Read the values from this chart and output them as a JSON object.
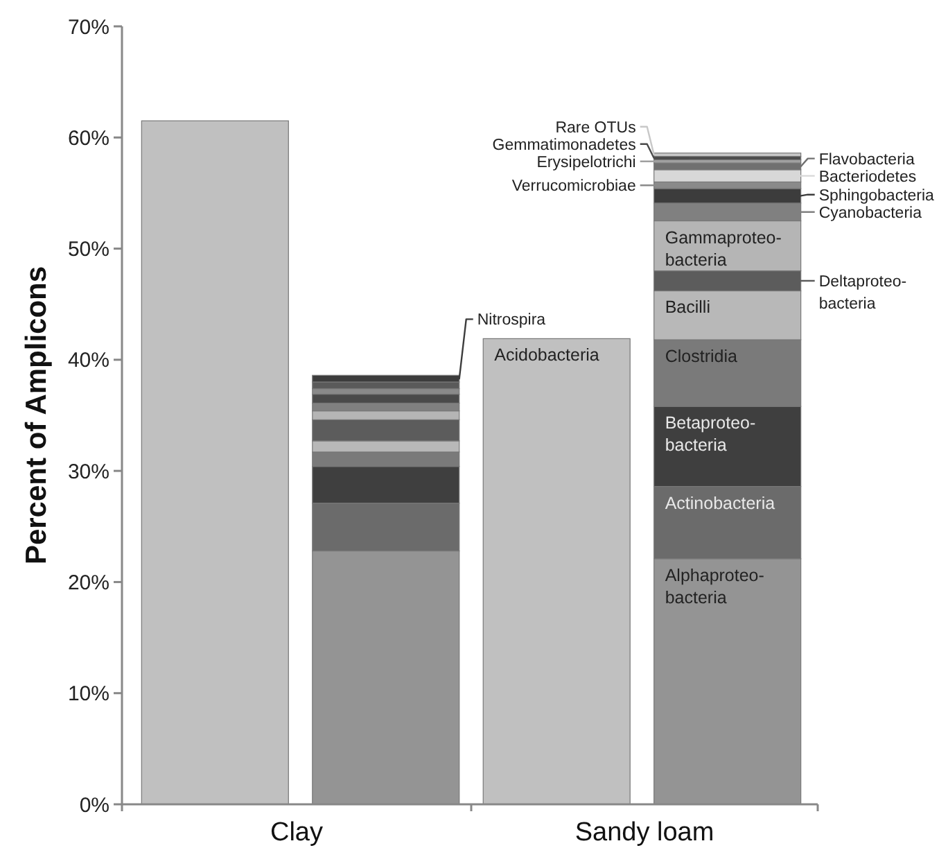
{
  "chart_data": {
    "type": "bar",
    "stacked": true,
    "ylabel": "Percent of Amplicons",
    "categories": [
      null,
      null,
      null,
      null
    ],
    "annotations": [
      "Clay",
      "Sandy loam"
    ],
    "ylim": [
      0,
      70
    ],
    "yticks": [
      {
        "value": 0,
        "label": "0%"
      },
      {
        "value": 10,
        "label": "10%"
      },
      {
        "value": 20,
        "label": "20%"
      },
      {
        "value": 30,
        "label": "30%"
      },
      {
        "value": 40,
        "label": "40%"
      },
      {
        "value": 50,
        "label": "50%"
      },
      {
        "value": 60,
        "label": "60%"
      },
      {
        "value": 70,
        "label": "70%"
      }
    ],
    "grid": false,
    "legend": "right",
    "series": [
      {
        "name": "Acidobacteria",
        "color": "#c0c0c0",
        "values": [
          61.5,
          null,
          41.9,
          null
        ]
      },
      {
        "color": "#949494",
        "values": [
          null,
          22.8,
          null,
          null
        ]
      },
      {
        "color": "#6b6b6b",
        "values": [
          null,
          4.3,
          null,
          null
        ]
      },
      {
        "color": "#3f3f3f",
        "values": [
          null,
          3.3,
          null,
          null
        ]
      },
      {
        "color": "#7a7a7a",
        "values": [
          null,
          1.3,
          null,
          null
        ]
      },
      {
        "color": "#b8b8b8",
        "values": [
          null,
          1.0,
          null,
          null
        ]
      },
      {
        "color": "#5c5c5c",
        "values": [
          null,
          1.9,
          null,
          null
        ]
      },
      {
        "color": "#b5b5b5",
        "values": [
          null,
          0.8,
          null,
          null
        ]
      },
      {
        "color": "#808080",
        "values": [
          null,
          0.7,
          null,
          null
        ]
      },
      {
        "color": "#4a4a4a",
        "values": [
          null,
          0.8,
          null,
          null
        ]
      },
      {
        "color": "#8a8a8a",
        "values": [
          null,
          0.5,
          null,
          null
        ]
      },
      {
        "color": "#5a5a5a",
        "values": [
          null,
          0.6,
          null,
          null
        ]
      },
      {
        "name": "Nitrospira",
        "color": "#3c3c3c",
        "values": [
          null,
          0.6,
          null,
          null
        ]
      },
      {
        "name": "Alphaproteo-\nbacteria",
        "color": "#949494",
        "values": [
          null,
          null,
          null,
          22.1
        ]
      },
      {
        "name": "Actinobacteria",
        "color": "#6b6b6b",
        "values": [
          null,
          null,
          null,
          6.5
        ]
      },
      {
        "name": "Betaproteo-\nbacteria",
        "color": "#3f3f3f",
        "values": [
          null,
          null,
          null,
          7.2
        ]
      },
      {
        "name": "Clostridia",
        "color": "#7a7a7a",
        "values": [
          null,
          null,
          null,
          6.0
        ]
      },
      {
        "name": "Bacilli",
        "color": "#b8b8b8",
        "values": [
          null,
          null,
          null,
          4.4
        ]
      },
      {
        "name": "Deltaproteo-\nbacteria",
        "color": "#5c5c5c",
        "values": [
          null,
          null,
          null,
          1.8
        ]
      },
      {
        "name": "Gammaproteo-\nbacteria",
        "color": "#b5b5b5",
        "values": [
          null,
          null,
          null,
          4.5
        ]
      },
      {
        "name": "Cyanobacteria",
        "color": "#808080",
        "values": [
          null,
          null,
          null,
          1.6
        ]
      },
      {
        "name": "Sphingobacteria",
        "color": "#3c3c3c",
        "values": [
          null,
          null,
          null,
          1.3
        ]
      },
      {
        "name": "Verrucomicrobiae",
        "color": "#8a8a8a",
        "values": [
          null,
          null,
          null,
          0.6
        ]
      },
      {
        "name": "Bacteriodetes",
        "color": "#d8d8d8",
        "values": [
          null,
          null,
          null,
          1.1
        ]
      },
      {
        "name": "Flavobacteria",
        "color": "#707070",
        "values": [
          null,
          null,
          null,
          0.6
        ]
      },
      {
        "name": "Erysipelotrichi",
        "color": "#a0a0a0",
        "values": [
          null,
          null,
          null,
          0.3
        ]
      },
      {
        "name": "Gemmatimonadetes",
        "color": "#4a4a4a",
        "values": [
          null,
          null,
          null,
          0.3
        ]
      },
      {
        "name": "Rare OTUs",
        "color": "#c8c8c8",
        "values": [
          null,
          null,
          null,
          0.3
        ]
      }
    ]
  }
}
